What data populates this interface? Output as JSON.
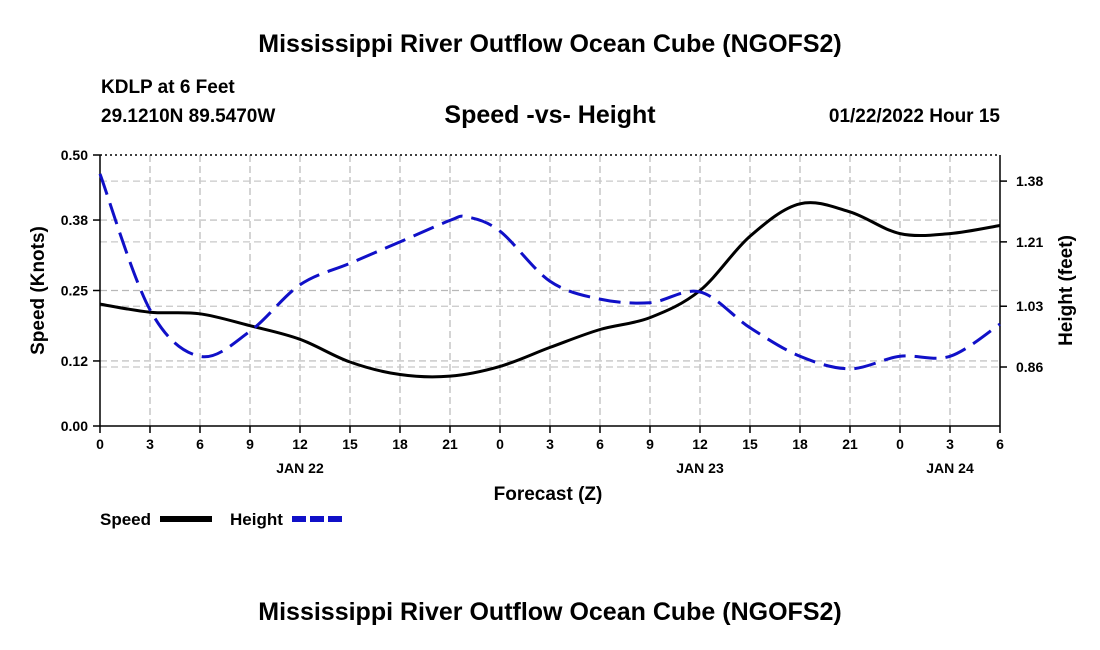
{
  "header": {
    "title": "Mississippi River Outflow Ocean Cube (NGOFS2)",
    "station": "KDLP at 6 Feet",
    "coords": "29.1210N  89.5470W",
    "subtitle": "Speed -vs- Height",
    "datetime": "01/22/2022 Hour 15"
  },
  "footer": {
    "title": "Mississippi River Outflow Ocean Cube (NGOFS2)"
  },
  "chart_data": {
    "type": "line",
    "xlabel": "Forecast (Z)",
    "ylabel_left": "Speed (Knots)",
    "ylabel_right": "Height (feet)",
    "x_range_hours": [
      0,
      54
    ],
    "x_tick_step_hours": 3,
    "x_ticks": [
      "0",
      "3",
      "6",
      "9",
      "12",
      "15",
      "18",
      "21",
      "0",
      "3",
      "6",
      "9",
      "12",
      "15",
      "18",
      "21",
      "0",
      "3",
      "6"
    ],
    "date_labels": [
      {
        "label": "JAN 22",
        "hour": 12
      },
      {
        "label": "JAN 23",
        "hour": 36
      },
      {
        "label": "JAN 24",
        "hour": 51
      }
    ],
    "ylim_left": [
      0,
      0.5
    ],
    "yticks_left": [
      "0.00",
      "0.12",
      "0.25",
      "0.38",
      "0.50"
    ],
    "ylim_right": [
      0.695,
      1.453
    ],
    "yticks_right": [
      "0.86",
      "1.03",
      "1.21",
      "1.38"
    ],
    "grid": true,
    "series": [
      {
        "name": "Speed",
        "axis": "left",
        "color": "#000000",
        "dash": "solid",
        "x": [
          0,
          3,
          6,
          9,
          12,
          15,
          18,
          21,
          24,
          27,
          30,
          33,
          36,
          39,
          42,
          45,
          48,
          51,
          54
        ],
        "values": [
          0.225,
          0.21,
          0.207,
          0.185,
          0.16,
          0.118,
          0.095,
          0.092,
          0.11,
          0.145,
          0.178,
          0.2,
          0.25,
          0.35,
          0.41,
          0.395,
          0.355,
          0.355,
          0.37
        ]
      },
      {
        "name": "Height",
        "axis": "right",
        "color": "#1010c8",
        "dash": "dashed",
        "x": [
          0,
          3,
          6,
          9,
          12,
          15,
          18,
          21,
          22,
          24,
          27,
          30,
          33,
          36,
          39,
          42,
          45,
          48,
          51,
          54
        ],
        "values": [
          1.4,
          1.02,
          0.89,
          0.96,
          1.09,
          1.15,
          1.21,
          1.27,
          1.28,
          1.24,
          1.1,
          1.05,
          1.04,
          1.07,
          0.97,
          0.89,
          0.855,
          0.89,
          0.89,
          0.98
        ]
      }
    ],
    "legend": {
      "position": "bottom-left",
      "entries": [
        {
          "label": "Speed",
          "color": "#000000",
          "dash": "solid"
        },
        {
          "label": "Height",
          "color": "#1010c8",
          "dash": "dashed"
        }
      ]
    }
  }
}
